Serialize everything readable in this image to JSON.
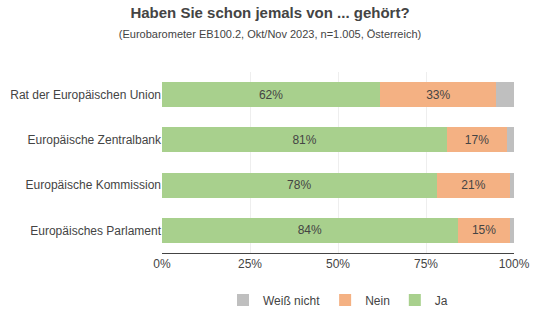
{
  "chart_data": {
    "type": "bar",
    "orientation": "horizontal",
    "stacked": true,
    "title": "Haben Sie schon jemals von ... gehört?",
    "subtitle": "(Eurobarometer EB100.2, Okt/Nov 2023, n=1.005, Österreich)",
    "categories": [
      "Europäisches Parlament",
      "Europäische Kommission",
      "Europäische Zentralbank",
      "Rat der Europäischen Union"
    ],
    "series": [
      {
        "name": "Ja",
        "color": "#a8d08d",
        "values": [
          84,
          78,
          81,
          62
        ],
        "value_labels": [
          "84%",
          "78%",
          "81%",
          "62%"
        ]
      },
      {
        "name": "Nein",
        "color": "#f4b183",
        "values": [
          15,
          21,
          17,
          33
        ],
        "value_labels": [
          "15%",
          "21%",
          "17%",
          "33%"
        ]
      },
      {
        "name": "Weiß nicht",
        "color": "#bfbfbf",
        "values": [
          1,
          1,
          2,
          5
        ]
      }
    ],
    "xlim": [
      0,
      100
    ],
    "xticks": [
      {
        "value": 0,
        "label": "0%"
      },
      {
        "value": 25,
        "label": "25%"
      },
      {
        "value": 50,
        "label": "50%"
      },
      {
        "value": 75,
        "label": "75%"
      },
      {
        "value": 100,
        "label": "100%"
      }
    ],
    "grid": true,
    "legend": "bottom",
    "data_labels": true
  }
}
